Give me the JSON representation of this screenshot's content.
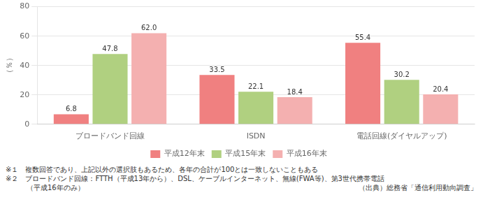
{
  "chart_data": {
    "type": "bar",
    "categories": [
      "ブロードバンド回線",
      "ISDN",
      "電話回線(ダイヤルアップ)"
    ],
    "series": [
      {
        "name": "平成12年末",
        "color": "#f08080",
        "values": [
          6.8,
          33.5,
          55.4
        ]
      },
      {
        "name": "平成15年末",
        "color": "#b0d080",
        "values": [
          47.8,
          22.1,
          30.2
        ]
      },
      {
        "name": "平成16年末",
        "color": "#f4b0b0",
        "values": [
          62.0,
          18.4,
          20.4
        ],
        "value_labels": [
          "62.0",
          "18.4",
          "20.4"
        ]
      }
    ],
    "ylabel": "（％）",
    "ylim": [
      0,
      80
    ],
    "yticks": [
      0,
      20,
      40,
      60,
      80
    ],
    "grid": true,
    "legend": "bottom",
    "data_labels": true,
    "annotations": [
      "※１　複数回答であり、上記以外の選択肢もあるため、各年の合計が100とは一致しないこともある",
      "※２　ブロードバンド回線：FTTH（平成13年から）、DSL、ケーブルインターネット、無線(FWA等)、第3世代携帯電話",
      "　　　（平成16年のみ）"
    ],
    "source": "（出典）総務省「通信利用動向調査」"
  }
}
